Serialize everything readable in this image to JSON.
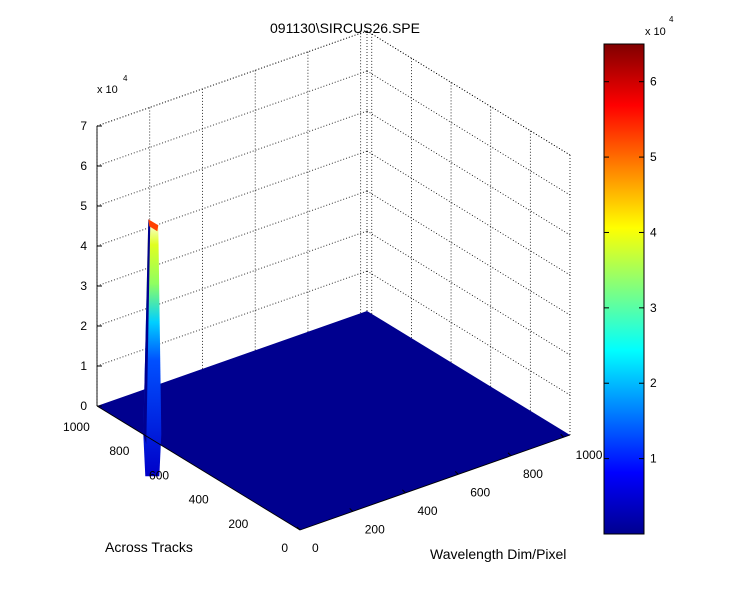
{
  "chart_data": {
    "type": "surface",
    "title": "091130\\SIRCUS26.SPE",
    "xlabel": "Wavelength Dim/Pixel",
    "ylabel": "Across Tracks",
    "zlabel": "",
    "xlim": [
      0,
      1024
    ],
    "ylim": [
      0,
      1024
    ],
    "zlim": [
      0,
      70000
    ],
    "x_ticks": [
      0,
      200,
      400,
      600,
      800,
      1000
    ],
    "y_ticks": [
      0,
      200,
      400,
      600,
      800,
      1000
    ],
    "z_ticks": [
      0,
      1,
      2,
      3,
      4,
      5,
      6,
      7
    ],
    "z_multiplier": "x 10",
    "z_exponent": "4",
    "colorbar": {
      "colormap": "jet",
      "range": [
        0,
        65000
      ],
      "ticks": [
        1,
        2,
        3,
        4,
        5,
        6
      ],
      "multiplier": "x 10",
      "exponent": "4"
    },
    "background_level": 0,
    "peak": {
      "x": 0,
      "y": 750,
      "z": 55000
    },
    "grid": true
  }
}
